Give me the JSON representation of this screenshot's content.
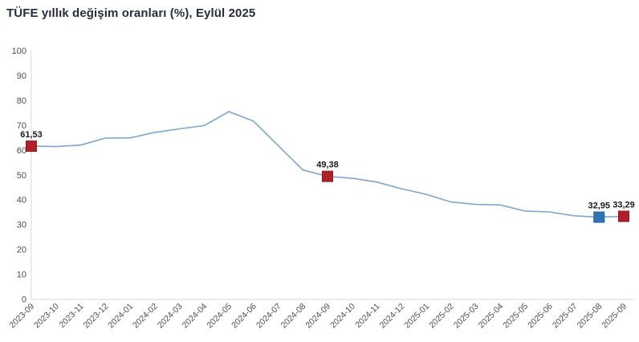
{
  "page": {
    "title": "TÜFE yıllık değişim oranları (%), Eylül 2025"
  },
  "chart_data": {
    "type": "line",
    "title": "TÜFE yıllık değişim oranları (%), Eylül 2025",
    "xlabel": "",
    "ylabel": "",
    "grid": false,
    "legend": "none",
    "ylim": [
      0,
      100
    ],
    "yticks": [
      0,
      10,
      20,
      30,
      40,
      50,
      60,
      70,
      80,
      90,
      100
    ],
    "categories": [
      "2023-09",
      "2023-10",
      "2023-11",
      "2023-12",
      "2024-01",
      "2024-02",
      "2024-03",
      "2024-04",
      "2024-05",
      "2024-06",
      "2024-07",
      "2024-08",
      "2024-09",
      "2024-10",
      "2024-11",
      "2024-12",
      "2025-01",
      "2025-02",
      "2025-03",
      "2025-04",
      "2025-05",
      "2025-06",
      "2025-07",
      "2025-08",
      "2025-09"
    ],
    "values": [
      61.53,
      61.36,
      61.98,
      64.77,
      64.86,
      67.07,
      68.5,
      69.8,
      75.45,
      71.6,
      61.78,
      51.97,
      49.38,
      48.58,
      47.09,
      44.38,
      42.12,
      39.05,
      38.1,
      37.86,
      35.41,
      35.05,
      33.52,
      32.95,
      33.29
    ],
    "line_color": "#7EA6CB",
    "axis_color": "#D9D9D9",
    "tick_label_color": "#4D4D4D",
    "data_label_color": "#1A1A1A",
    "annotations": [
      {
        "category": "2023-09",
        "value": 61.53,
        "label": "61,53",
        "marker_color": "#B02028",
        "marker_border": "#8C1A22"
      },
      {
        "category": "2024-09",
        "value": 49.38,
        "label": "49,38",
        "marker_color": "#B02028",
        "marker_border": "#8C1A22"
      },
      {
        "category": "2025-08",
        "value": 32.95,
        "label": "32,95",
        "marker_color": "#2E74B5",
        "marker_border": "#255E94"
      },
      {
        "category": "2025-09",
        "value": 33.29,
        "label": "33,29",
        "marker_color": "#B02028",
        "marker_border": "#8C1A22"
      }
    ]
  }
}
